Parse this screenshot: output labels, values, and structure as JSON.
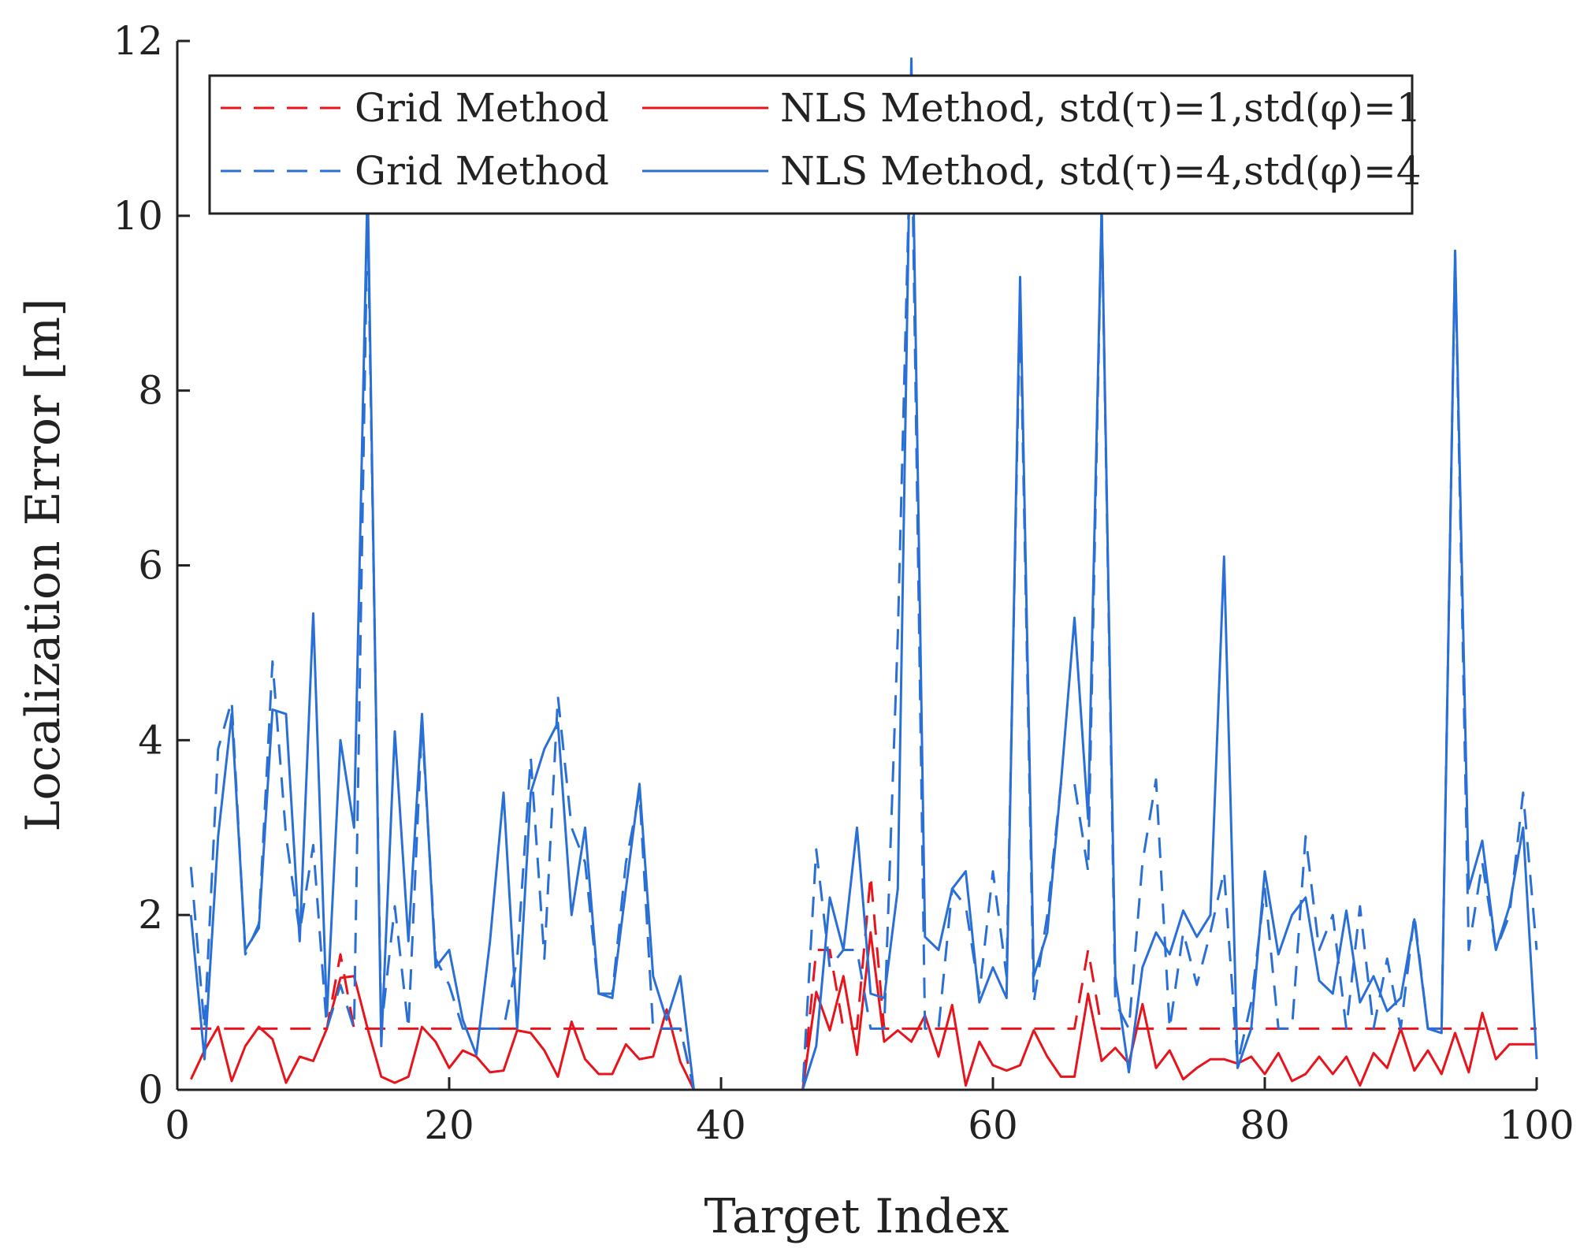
{
  "chart_data": {
    "type": "line",
    "title": "",
    "xlabel": "Target Index",
    "ylabel": "Localization Error [m]",
    "xlim": [
      0,
      100
    ],
    "ylim": [
      0,
      12
    ],
    "xticks": [
      0,
      20,
      40,
      60,
      80,
      100
    ],
    "yticks": [
      0,
      2,
      4,
      6,
      8,
      10,
      12
    ],
    "grid": false,
    "legend_position": "top",
    "legend": {
      "row1": {
        "grid": "Grid Method",
        "nls": "NLS Method, std(τ)=1,std(φ)=1"
      },
      "row2": {
        "grid": "Grid Method",
        "nls": "NLS Method, std(τ)=4,std(φ)=4"
      }
    },
    "colors": {
      "red": "#e8141c",
      "blue": "#2a6fd6",
      "axis": "#222222"
    },
    "series": [
      {
        "name": "Grid Method (std 1)",
        "color": "#e8141c",
        "dash": true,
        "x": [
          1,
          2,
          3,
          4,
          5,
          6,
          7,
          8,
          9,
          10,
          11,
          12,
          13,
          14,
          15,
          16,
          17,
          18,
          19,
          20,
          21,
          22,
          23,
          24,
          25,
          26,
          27,
          28,
          29,
          30,
          31,
          32,
          33,
          34,
          35,
          36,
          37,
          38,
          39,
          40,
          41,
          42,
          43,
          44,
          45,
          46,
          47,
          48,
          49,
          50,
          51,
          52,
          53,
          54,
          55,
          56,
          57,
          58,
          59,
          60,
          61,
          62,
          63,
          64,
          65,
          66,
          67,
          68,
          69,
          70,
          71,
          72,
          73,
          74,
          75,
          76,
          77,
          78,
          79,
          80,
          81,
          82,
          83,
          84,
          85,
          86,
          87,
          88,
          89,
          90,
          91,
          92,
          93,
          94,
          95,
          96,
          97,
          98,
          99,
          100
        ],
        "values": [
          0.7,
          0.7,
          0.7,
          0.7,
          0.7,
          0.7,
          0.7,
          0.7,
          0.7,
          0.7,
          0.7,
          1.55,
          0.7,
          0.7,
          0.7,
          0.7,
          0.7,
          0.7,
          0.7,
          0.7,
          0.7,
          0.7,
          0.7,
          0.7,
          0.7,
          0.7,
          0.7,
          0.7,
          0.7,
          0.7,
          0.7,
          0.7,
          0.7,
          0.7,
          0.7,
          0.7,
          0.7,
          0,
          0,
          0,
          0,
          0,
          0,
          0,
          0,
          0,
          1.6,
          1.6,
          0.7,
          0.7,
          2.45,
          0.7,
          0.7,
          0.7,
          0.7,
          0.7,
          0.7,
          0.7,
          0.7,
          0.7,
          0.7,
          0.7,
          0.7,
          0.7,
          0.7,
          0.7,
          1.6,
          0.7,
          0.7,
          0.7,
          0.7,
          0.7,
          0.7,
          0.7,
          0.7,
          0.7,
          0.7,
          0.7,
          0.7,
          0.7,
          0.7,
          0.7,
          0.7,
          0.7,
          0.7,
          0.7,
          0.7,
          0.7,
          0.7,
          0.7,
          0.7,
          0.7,
          0.7,
          0.7,
          0.7,
          0.7,
          0.7,
          0.7,
          0.7,
          0.7
        ]
      },
      {
        "name": "NLS Method, std(τ)=1,std(φ)=1",
        "color": "#e8141c",
        "dash": false,
        "x": [
          1,
          2,
          3,
          4,
          5,
          6,
          7,
          8,
          9,
          10,
          11,
          12,
          13,
          14,
          15,
          16,
          17,
          18,
          19,
          20,
          21,
          22,
          23,
          24,
          25,
          26,
          27,
          28,
          29,
          30,
          31,
          32,
          33,
          34,
          35,
          36,
          37,
          38,
          39,
          40,
          41,
          42,
          43,
          44,
          45,
          46,
          47,
          48,
          49,
          50,
          51,
          52,
          53,
          54,
          55,
          56,
          57,
          58,
          59,
          60,
          61,
          62,
          63,
          64,
          65,
          66,
          67,
          68,
          69,
          70,
          71,
          72,
          73,
          74,
          75,
          76,
          77,
          78,
          79,
          80,
          81,
          82,
          83,
          84,
          85,
          86,
          87,
          88,
          89,
          90,
          91,
          92,
          93,
          94,
          95,
          96,
          97,
          98,
          99,
          100
        ],
        "values": [
          0.12,
          0.45,
          0.72,
          0.1,
          0.5,
          0.72,
          0.58,
          0.08,
          0.38,
          0.33,
          0.7,
          1.28,
          1.3,
          0.7,
          0.15,
          0.08,
          0.15,
          0.72,
          0.55,
          0.25,
          0.45,
          0.38,
          0.2,
          0.22,
          0.68,
          0.65,
          0.45,
          0.15,
          0.78,
          0.35,
          0.18,
          0.18,
          0.52,
          0.35,
          0.38,
          0.92,
          0.32,
          0,
          0,
          0,
          0,
          0,
          0,
          0,
          0,
          0,
          1.12,
          0.68,
          1.3,
          0.4,
          1.8,
          0.55,
          0.68,
          0.55,
          0.85,
          0.38,
          0.97,
          0.05,
          0.55,
          0.28,
          0.22,
          0.28,
          0.68,
          0.38,
          0.15,
          0.15,
          1.1,
          0.33,
          0.48,
          0.3,
          0.98,
          0.25,
          0.45,
          0.12,
          0.25,
          0.35,
          0.35,
          0.3,
          0.38,
          0.18,
          0.42,
          0.1,
          0.18,
          0.38,
          0.18,
          0.38,
          0.05,
          0.42,
          0.25,
          0.7,
          0.22,
          0.45,
          0.18,
          0.65,
          0.2,
          0.88,
          0.35,
          0.52,
          0.52,
          0.52
        ]
      },
      {
        "name": "Grid Method (std 4)",
        "color": "#2a6fd6",
        "dash": true,
        "x": [
          1,
          2,
          3,
          4,
          5,
          6,
          7,
          8,
          9,
          10,
          11,
          12,
          13,
          14,
          15,
          16,
          17,
          18,
          19,
          20,
          21,
          22,
          23,
          24,
          25,
          26,
          27,
          28,
          29,
          30,
          31,
          32,
          33,
          34,
          35,
          36,
          37,
          38,
          39,
          40,
          41,
          42,
          43,
          44,
          45,
          46,
          47,
          48,
          49,
          50,
          51,
          52,
          53,
          54,
          55,
          56,
          57,
          58,
          59,
          60,
          61,
          62,
          63,
          64,
          65,
          66,
          67,
          68,
          69,
          70,
          71,
          72,
          73,
          74,
          75,
          76,
          77,
          78,
          79,
          80,
          81,
          82,
          83,
          84,
          85,
          86,
          87,
          88,
          89,
          90,
          91,
          92,
          93,
          94,
          95,
          96,
          97,
          98,
          99,
          100
        ],
        "values": [
          2.55,
          0.7,
          3.9,
          4.45,
          1.55,
          1.9,
          4.9,
          2.9,
          1.8,
          2.8,
          0.7,
          1.2,
          0.7,
          10.1,
          0.7,
          2.1,
          0.7,
          4.2,
          1.5,
          1.2,
          0.7,
          0.7,
          0.7,
          0.7,
          1.5,
          3.8,
          1.5,
          4.5,
          3.0,
          2.6,
          1.1,
          1.1,
          2.6,
          3.4,
          0.7,
          0.7,
          0.7,
          0,
          0,
          0,
          0,
          0,
          0,
          0,
          0,
          0,
          2.75,
          1.4,
          1.6,
          1.6,
          0.7,
          0.7,
          5.2,
          11.3,
          0.7,
          0.7,
          2.3,
          2.1,
          1.1,
          2.5,
          1.3,
          9.0,
          1.0,
          2.0,
          3.5,
          3.5,
          2.5,
          10.1,
          1.0,
          0.7,
          2.6,
          3.55,
          0.7,
          1.8,
          1.2,
          1.8,
          2.5,
          0.3,
          1.0,
          2.3,
          0.7,
          0.7,
          2.9,
          1.6,
          2.0,
          0.7,
          2.1,
          0.7,
          1.5,
          0.7,
          2.0,
          0.7,
          0.7,
          9.6,
          1.6,
          2.6,
          1.6,
          2.0,
          3.4,
          1.6
        ]
      },
      {
        "name": "NLS Method, std(τ)=4,std(φ)=4",
        "color": "#2a6fd6",
        "dash": false,
        "x": [
          1,
          2,
          3,
          4,
          5,
          6,
          7,
          8,
          9,
          10,
          11,
          12,
          13,
          14,
          15,
          16,
          17,
          18,
          19,
          20,
          21,
          22,
          23,
          24,
          25,
          26,
          27,
          28,
          29,
          30,
          31,
          32,
          33,
          34,
          35,
          36,
          37,
          38,
          39,
          40,
          41,
          42,
          43,
          44,
          45,
          46,
          47,
          48,
          49,
          50,
          51,
          52,
          53,
          54,
          55,
          56,
          57,
          58,
          59,
          60,
          61,
          62,
          63,
          64,
          65,
          66,
          67,
          68,
          69,
          70,
          71,
          72,
          73,
          74,
          75,
          76,
          77,
          78,
          79,
          80,
          81,
          82,
          83,
          84,
          85,
          86,
          87,
          88,
          89,
          90,
          91,
          92,
          93,
          94,
          95,
          96,
          97,
          98,
          99,
          100
        ],
        "values": [
          2.0,
          0.35,
          2.9,
          4.3,
          1.6,
          1.85,
          4.35,
          4.3,
          1.7,
          5.45,
          0.85,
          4.0,
          3.0,
          10.4,
          0.5,
          4.1,
          1.7,
          4.3,
          1.4,
          1.6,
          0.8,
          0.4,
          1.7,
          3.4,
          0.7,
          3.4,
          3.9,
          4.2,
          2.0,
          3.0,
          1.1,
          1.05,
          2.3,
          3.5,
          1.3,
          0.8,
          1.3,
          0,
          0,
          0,
          0,
          0,
          0,
          0,
          0,
          0,
          0.5,
          2.2,
          1.6,
          3.0,
          1.1,
          1.05,
          2.3,
          11.8,
          1.75,
          1.6,
          2.3,
          2.5,
          1.0,
          1.4,
          1.05,
          9.3,
          1.3,
          1.8,
          3.5,
          5.4,
          3.1,
          10.1,
          1.3,
          0.2,
          1.4,
          1.8,
          1.55,
          2.05,
          1.75,
          2.0,
          6.1,
          0.25,
          0.7,
          2.5,
          1.55,
          2.0,
          2.2,
          1.25,
          1.1,
          2.05,
          1.0,
          1.3,
          0.9,
          1.05,
          1.95,
          0.7,
          0.65,
          9.6,
          2.3,
          2.85,
          1.6,
          2.1,
          3.0,
          0.35
        ]
      }
    ]
  }
}
